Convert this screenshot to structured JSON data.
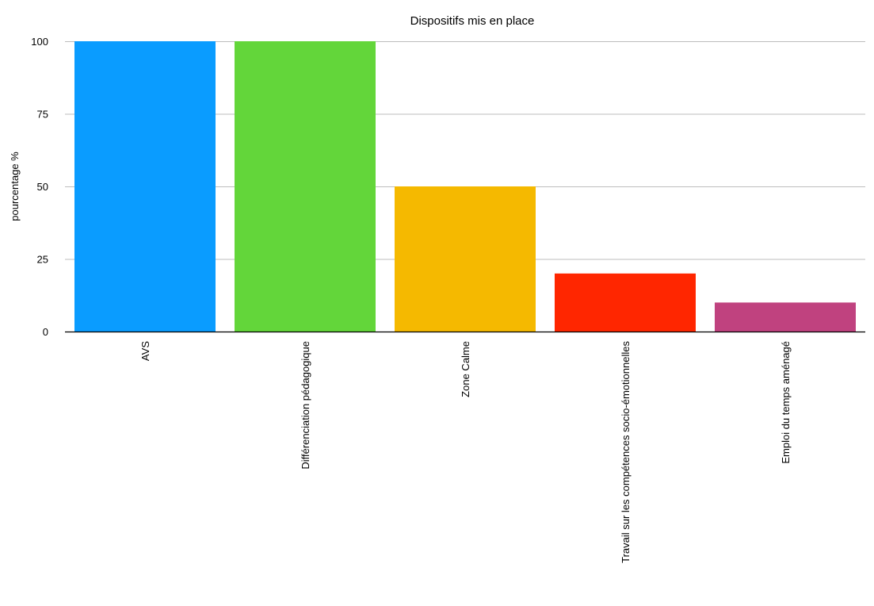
{
  "chart_data": {
    "type": "bar",
    "title": "Dispositifs mis en place",
    "xlabel": "",
    "ylabel": "pourcentage %",
    "ylim": [
      0,
      100
    ],
    "yticks": [
      0,
      25,
      50,
      75,
      100
    ],
    "grid": true,
    "legend": "none",
    "categories": [
      "AVS",
      "Différenciation pédagogique",
      "Zone Calme",
      "Travail sur les compétences socio-émotionnelles",
      "Emploi du temps aménagé"
    ],
    "values": [
      100,
      100,
      50,
      20,
      10
    ],
    "colors": [
      "#0a9cff",
      "#63d63a",
      "#f5b900",
      "#ff2600",
      "#c0427f"
    ]
  }
}
